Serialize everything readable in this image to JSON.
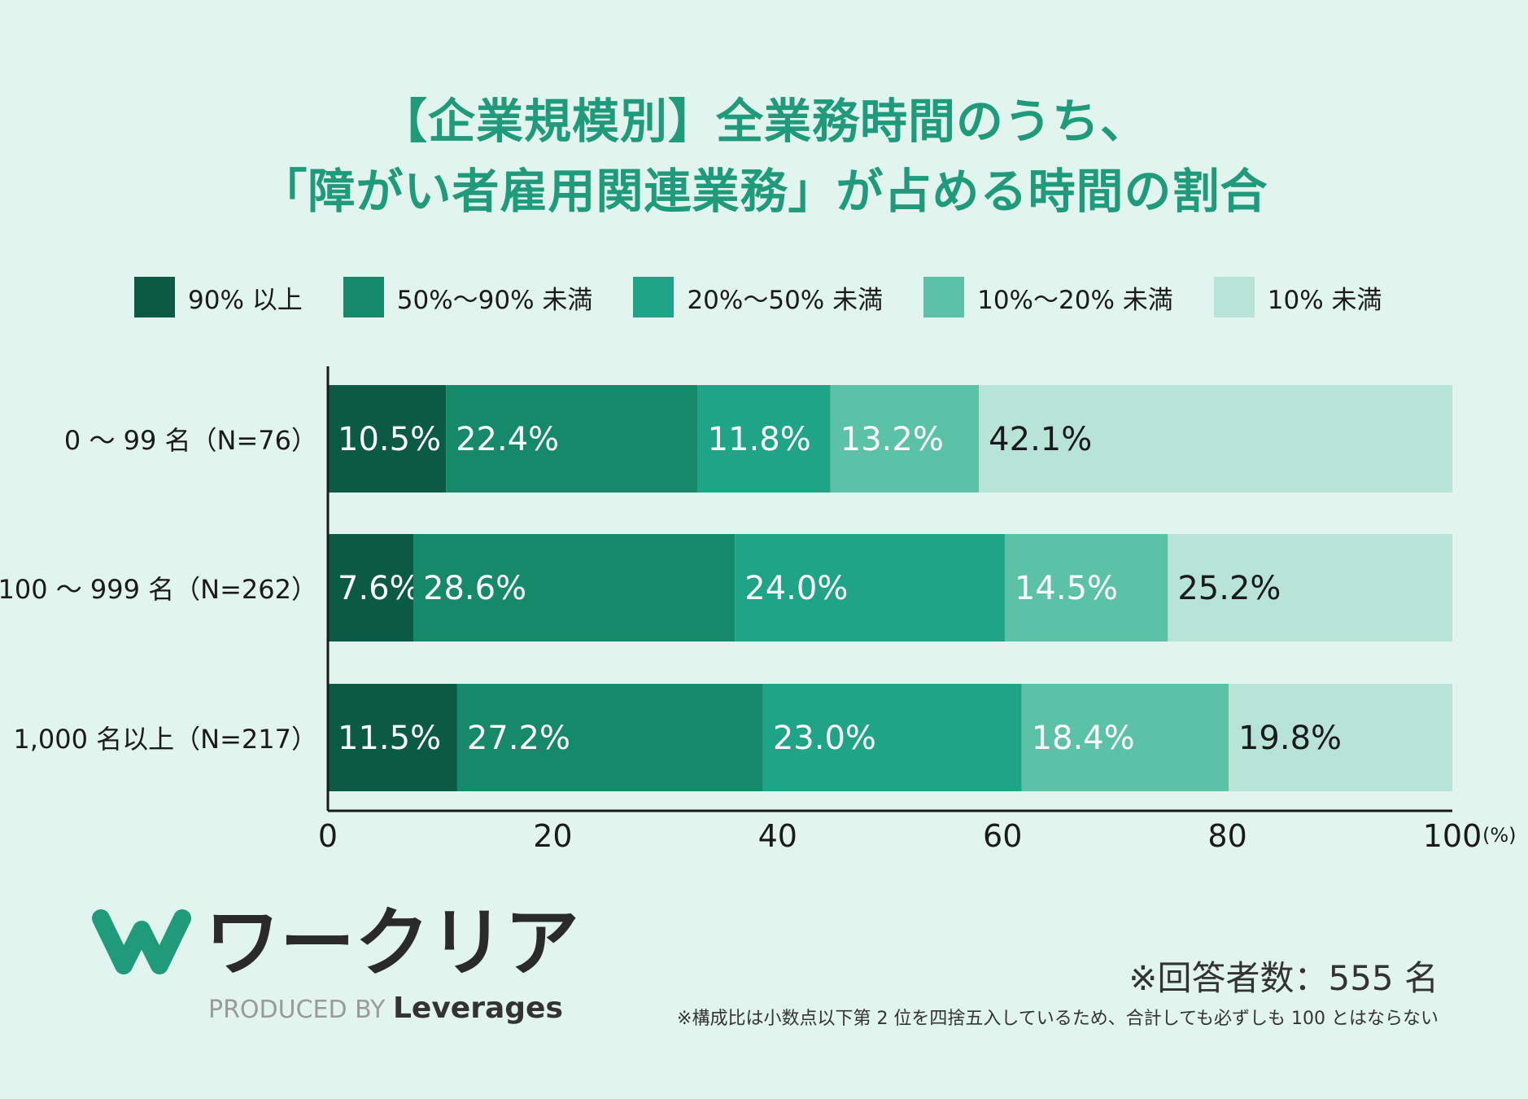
{
  "title": {
    "line1": "【企業規模別】全業務時間のうち、",
    "line2": "「障がい者雇用関連業務」が占める時間の割合"
  },
  "colors": {
    "background": "#e1f4ee",
    "title": "#1f9a7b",
    "series": [
      "#0b5a43",
      "#15896a",
      "#20a487",
      "#5bc2a8",
      "#b8e4d8"
    ]
  },
  "chart_data": {
    "type": "bar",
    "orientation": "horizontal",
    "stacked": true,
    "categories": [
      "0 〜 99 名（N=76）",
      "100 〜 999 名（N=262）",
      "1,000 名以上（N=217）"
    ],
    "series": [
      {
        "name": "90% 以上",
        "values": [
          10.5,
          7.6,
          11.5
        ]
      },
      {
        "name": "50%〜90% 未満",
        "values": [
          22.4,
          28.6,
          27.2
        ]
      },
      {
        "name": "20%〜50% 未満",
        "values": [
          11.8,
          24.0,
          23.0
        ]
      },
      {
        "name": "10%〜20% 未満",
        "values": [
          13.2,
          14.5,
          18.4
        ]
      },
      {
        "name": "10% 未満",
        "values": [
          42.1,
          25.2,
          19.8
        ]
      }
    ],
    "xlim": [
      0,
      100
    ],
    "xticks": [
      "0",
      "20",
      "40",
      "60",
      "80",
      "100"
    ],
    "xunit": "(%)",
    "legend": "top"
  },
  "brand": {
    "name": "ワークリア",
    "produced_by": "PRODUCED BY",
    "company": "Leverages"
  },
  "footer": {
    "respondents": "※回答者数：555 名",
    "note": "※構成比は小数点以下第 2 位を四捨五入しているため、合計しても必ずしも 100 とはならない"
  }
}
